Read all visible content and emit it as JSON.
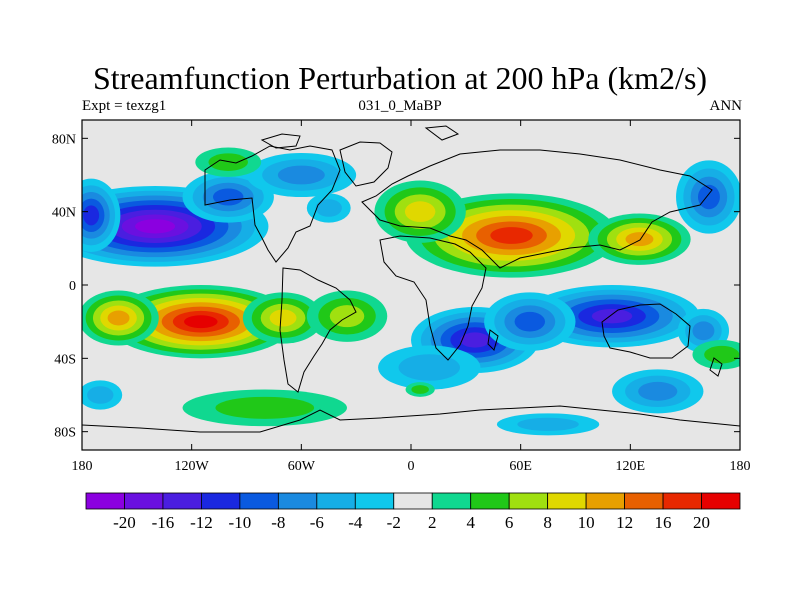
{
  "chart_data": {
    "type": "heatmap",
    "title": "Streamfunction Perturbation at 200 hPa (km2/s)",
    "left_string": "Expt = texzg1",
    "center_string": "031_0_MaBP",
    "right_string": "ANN",
    "xaxis": {
      "range": [
        -180,
        180
      ],
      "ticks": [
        -180,
        -120,
        -60,
        0,
        60,
        120,
        180
      ],
      "tick_labels": [
        "180",
        "120W",
        "60W",
        "0",
        "60E",
        "120E",
        "180"
      ]
    },
    "yaxis": {
      "range": [
        -90,
        90
      ],
      "ticks": [
        80,
        40,
        0,
        -40,
        -80
      ],
      "tick_labels": [
        "80N",
        "40N",
        "0",
        "40S",
        "80S"
      ]
    },
    "colorbar": {
      "levels": [
        -20,
        -16,
        -12,
        -10,
        -8,
        -6,
        -4,
        -2,
        2,
        4,
        6,
        8,
        10,
        12,
        16,
        20
      ],
      "labels": [
        "-20",
        "-16",
        "-12",
        "-10",
        "-8",
        "-6",
        "-4",
        "-2",
        "2",
        "4",
        "6",
        "8",
        "10",
        "12",
        "16",
        "20"
      ],
      "colors": [
        "#8b00e0",
        "#6a10e0",
        "#4a1ee0",
        "#1a28e0",
        "#0a5ae0",
        "#1a8ae0",
        "#16aee6",
        "#10c8ec",
        "#e6e6e6",
        "#10d890",
        "#20c818",
        "#a0e010",
        "#e0d800",
        "#e8a000",
        "#e86000",
        "#e82800",
        "#e60000"
      ]
    },
    "blobs": [
      {
        "name": "neg-na-pacific",
        "lon": -140,
        "lat": 32,
        "rlon": 62,
        "rlat": 22,
        "value": -20
      },
      {
        "name": "neg-npac-west",
        "lon": -175,
        "lat": 38,
        "rlon": 16,
        "rlat": 20,
        "value": -10
      },
      {
        "name": "neg-na-center",
        "lon": -100,
        "lat": 48,
        "rlon": 25,
        "rlat": 14,
        "value": -8
      },
      {
        "name": "neg-arctic-am",
        "lon": -60,
        "lat": 60,
        "rlon": 30,
        "rlat": 12,
        "value": -6
      },
      {
        "name": "neg-na-east",
        "lon": -45,
        "lat": 42,
        "rlon": 12,
        "rlat": 8,
        "value": -4
      },
      {
        "name": "neg-nw-pacific",
        "lon": 163,
        "lat": 48,
        "rlon": 18,
        "rlat": 20,
        "value": -8
      },
      {
        "name": "neg-sh-africa",
        "lon": 35,
        "lat": -30,
        "rlon": 35,
        "rlat": 18,
        "value": -14
      },
      {
        "name": "neg-sh-indian",
        "lon": 110,
        "lat": -17,
        "rlon": 48,
        "rlat": 17,
        "value": -12
      },
      {
        "name": "neg-sh-io-west",
        "lon": 65,
        "lat": -20,
        "rlon": 25,
        "rlat": 16,
        "value": -8
      },
      {
        "name": "neg-sh-pac",
        "lon": 160,
        "lat": -25,
        "rlon": 14,
        "rlat": 12,
        "value": -6
      },
      {
        "name": "neg-sh-southaus",
        "lon": 135,
        "lat": -58,
        "rlon": 25,
        "rlat": 12,
        "value": -6
      },
      {
        "name": "neg-sh-southpac",
        "lon": -170,
        "lat": -60,
        "rlon": 12,
        "rlat": 8,
        "value": -4
      },
      {
        "name": "neg-antarctic",
        "lon": 75,
        "lat": -76,
        "rlon": 28,
        "rlat": 6,
        "value": -4
      },
      {
        "name": "neg-southatl",
        "lon": 10,
        "lat": -45,
        "rlon": 28,
        "rlat": 12,
        "value": -4
      },
      {
        "name": "pos-sh-pacific",
        "lon": -115,
        "lat": -20,
        "rlon": 52,
        "rlat": 20,
        "value": 20
      },
      {
        "name": "pos-sh-pac-west",
        "lon": -160,
        "lat": -18,
        "rlon": 22,
        "rlat": 15,
        "value": 10
      },
      {
        "name": "pos-sh-pac-east",
        "lon": -70,
        "lat": -18,
        "rlon": 22,
        "rlat": 14,
        "value": 8
      },
      {
        "name": "pos-sh-atlantic",
        "lon": -35,
        "lat": -17,
        "rlon": 22,
        "rlat": 14,
        "value": 6
      },
      {
        "name": "pos-eurasia",
        "lon": 55,
        "lat": 27,
        "rlon": 58,
        "rlat": 23,
        "value": 16
      },
      {
        "name": "pos-europe",
        "lon": 5,
        "lat": 40,
        "rlon": 25,
        "rlat": 17,
        "value": 8
      },
      {
        "name": "pos-east-asia",
        "lon": 125,
        "lat": 25,
        "rlon": 28,
        "rlat": 14,
        "value": 10
      },
      {
        "name": "pos-arctic",
        "lon": -100,
        "lat": 67,
        "rlon": 18,
        "rlat": 8,
        "value": 4
      },
      {
        "name": "pos-sh-south",
        "lon": -80,
        "lat": -67,
        "rlon": 45,
        "rlat": 10,
        "value": 4
      },
      {
        "name": "pos-sh-east",
        "lon": 170,
        "lat": -38,
        "rlon": 16,
        "rlat": 8,
        "value": 4
      },
      {
        "name": "pos-sh-mid",
        "lon": 5,
        "lat": -57,
        "rlon": 8,
        "rlat": 4,
        "value": 4
      }
    ]
  }
}
